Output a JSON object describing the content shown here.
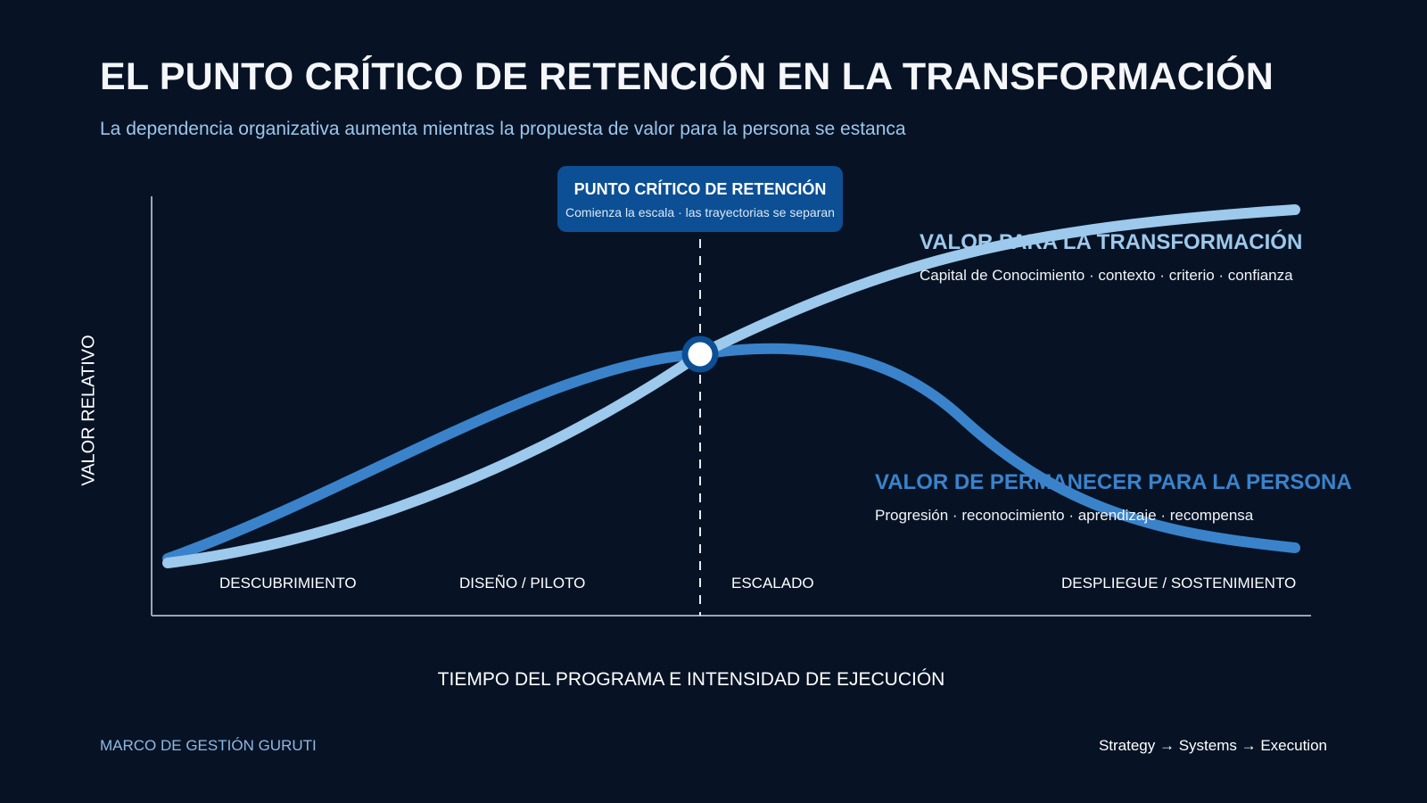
{
  "header": {
    "title": "EL PUNTO CRÍTICO DE RETENCIÓN EN LA TRANSFORMACIÓN",
    "subtitle": "La dependencia organizativa aumenta mientras la propuesta de valor para la persona se estanca"
  },
  "callout": {
    "title": "PUNTO CRÍTICO DE RETENCIÓN",
    "subtitle": "Comienza la escala · las trayectorias se separan"
  },
  "series": {
    "transformation": {
      "label": "VALOR PARA LA TRANSFORMACIÓN",
      "description": "Capital de Conocimiento · contexto · criterio · confianza",
      "color": "#9dc9ec"
    },
    "person": {
      "label": "VALOR DE PERMANECER PARA LA PERSONA",
      "description": "Progresión · reconocimiento · aprendizaje · recompensa",
      "color": "#3a83cb"
    }
  },
  "axes": {
    "y_label": "VALOR RELATIVO",
    "x_label": "TIEMPO DEL PROGRAMA E INTENSIDAD DE EJECUCIÓN"
  },
  "phases": [
    "DESCUBRIMIENTO",
    "DISEÑO / PILOTO",
    "ESCALADO",
    "DESPLIEGUE / SOSTENIMIENTO"
  ],
  "footer": {
    "left": "MARCO DE GESTIÓN GURUTI",
    "right": "Strategy → Systems → Execution"
  },
  "colors": {
    "background": "#071325",
    "callout_bg": "#0c4f94",
    "axis": "#9aa6b8",
    "marker_ring": "#0c4f94"
  }
}
